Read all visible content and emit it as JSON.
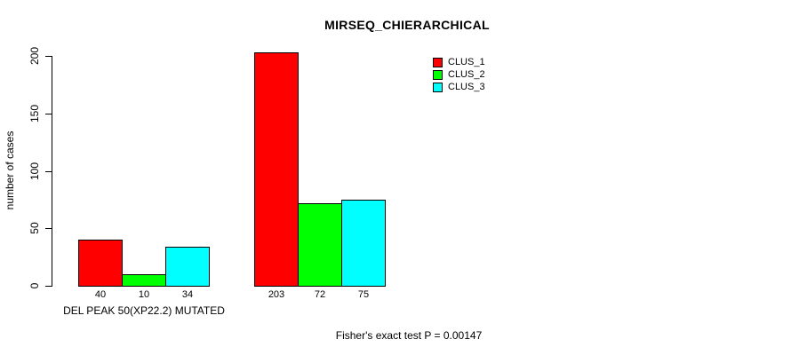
{
  "chart_data": {
    "type": "bar",
    "title": "MIRSEQ_CHIERARCHICAL",
    "ylabel": "number of cases",
    "ylim": [
      0,
      200
    ],
    "yticks": [
      "0",
      "50",
      "100",
      "150",
      "200"
    ],
    "categories": [
      "DEL PEAK 50(XP22.2) MUTATED",
      ""
    ],
    "series": [
      {
        "name": "CLUS_1",
        "color": "#ff0000",
        "values": [
          40,
          203
        ]
      },
      {
        "name": "CLUS_2",
        "color": "#00ff00",
        "values": [
          10,
          72
        ]
      },
      {
        "name": "CLUS_3",
        "color": "#00ffff",
        "values": [
          34,
          75
        ]
      }
    ],
    "bar_border_color": "#000000",
    "value_labels_shown": true,
    "legend_position": "top-right",
    "grid": false,
    "annotation": "Fisher's exact test P = 0.00147"
  }
}
